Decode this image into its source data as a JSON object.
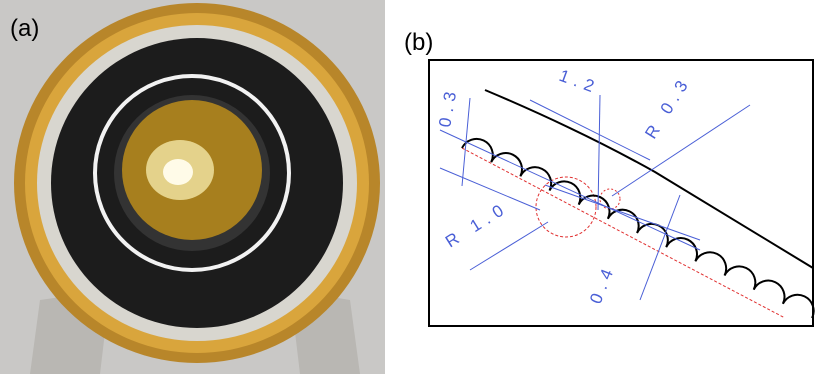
{
  "panels": [
    {
      "label": "(a)"
    },
    {
      "label": "(b)",
      "dimensions": [
        "0.3",
        "1.2",
        "R 0.3",
        "R 1.0",
        "0.4"
      ]
    }
  ]
}
